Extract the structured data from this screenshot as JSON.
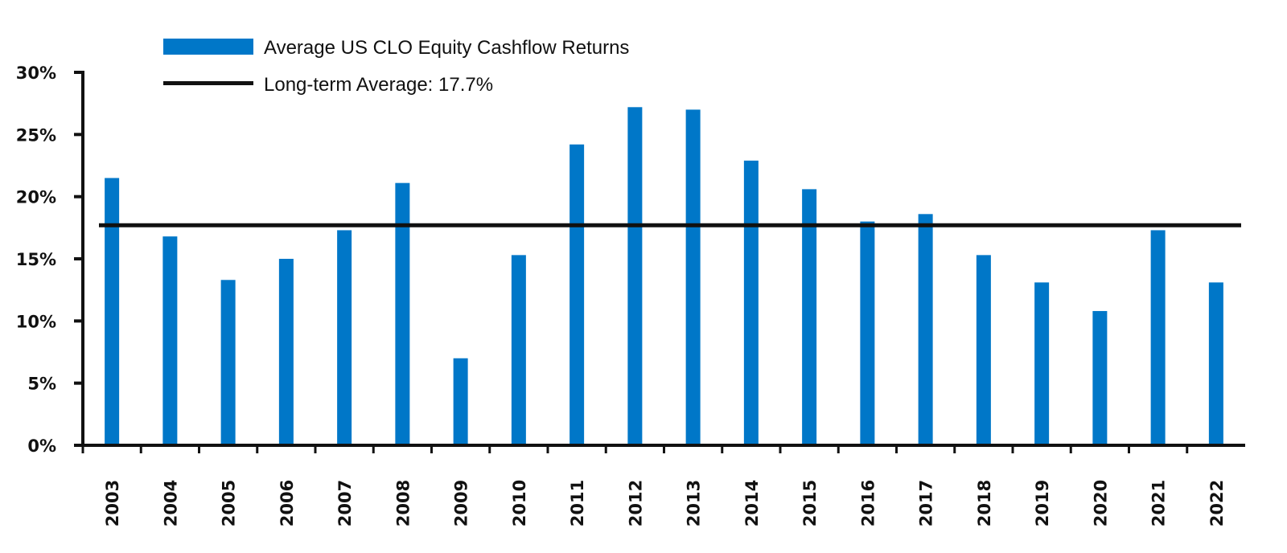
{
  "chart_data": {
    "type": "bar",
    "categories": [
      "2003",
      "2004",
      "2005",
      "2006",
      "2007",
      "2008",
      "2009",
      "2010",
      "2011",
      "2012",
      "2013",
      "2014",
      "2015",
      "2016",
      "2017",
      "2018",
      "2019",
      "2020",
      "2021",
      "2022"
    ],
    "series": [
      {
        "name": "Average US CLO Equity Cashflow Returns",
        "color": "#0077C8",
        "values": [
          21.5,
          16.8,
          13.3,
          15.0,
          17.3,
          21.1,
          7.0,
          15.3,
          24.2,
          27.2,
          27.0,
          22.9,
          20.6,
          18.0,
          18.6,
          15.3,
          13.1,
          10.8,
          17.3,
          13.1
        ]
      }
    ],
    "reference_line": {
      "name": "Long-term Average: 17.7%",
      "value": 17.7,
      "color": "#111111"
    },
    "yticks": [
      "0%",
      "5%",
      "10%",
      "15%",
      "20%",
      "25%",
      "30%"
    ],
    "ylim": [
      0,
      30
    ],
    "title": "",
    "xlabel": "",
    "ylabel": "",
    "grid": false,
    "legend": "top-left"
  }
}
